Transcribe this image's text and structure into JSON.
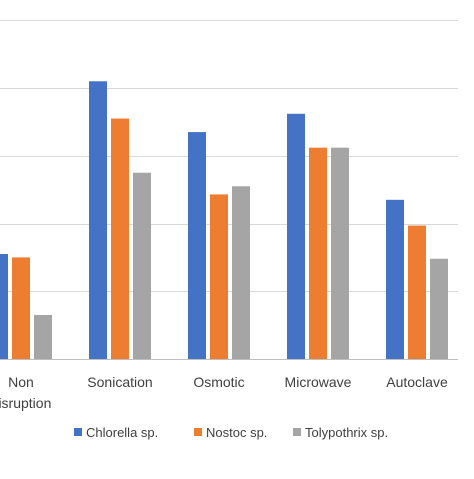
{
  "chart_data": {
    "type": "bar",
    "categories": [
      "Non disruption",
      "Sonication",
      "Osmotic",
      "Microwave",
      "Autoclave"
    ],
    "category_label_lines": [
      [
        "Non",
        "disruption"
      ],
      [
        "Sonication"
      ],
      [
        "Osmotic"
      ],
      [
        "Microwave"
      ],
      [
        "Autoclave"
      ]
    ],
    "series": [
      {
        "name": "Chlorella sp.",
        "values": [
          1.55,
          4.1,
          3.35,
          3.62,
          2.35
        ],
        "color": "#4472C4"
      },
      {
        "name": "Nostoc sp.",
        "values": [
          1.5,
          3.55,
          2.43,
          3.12,
          1.97
        ],
        "color": "#ED7D31"
      },
      {
        "name": "Tolypothrix sp.",
        "values": [
          0.65,
          2.75,
          2.55,
          3.12,
          1.48
        ],
        "color": "#A5A5A5"
      }
    ],
    "ylim": [
      0,
      5.3
    ],
    "grid": true,
    "gridline_values": [
      0,
      1,
      2,
      3,
      4,
      5
    ],
    "legend": "bottom",
    "gridline_color": "#d9d9d9",
    "axis_color": "#bfbfbf"
  }
}
